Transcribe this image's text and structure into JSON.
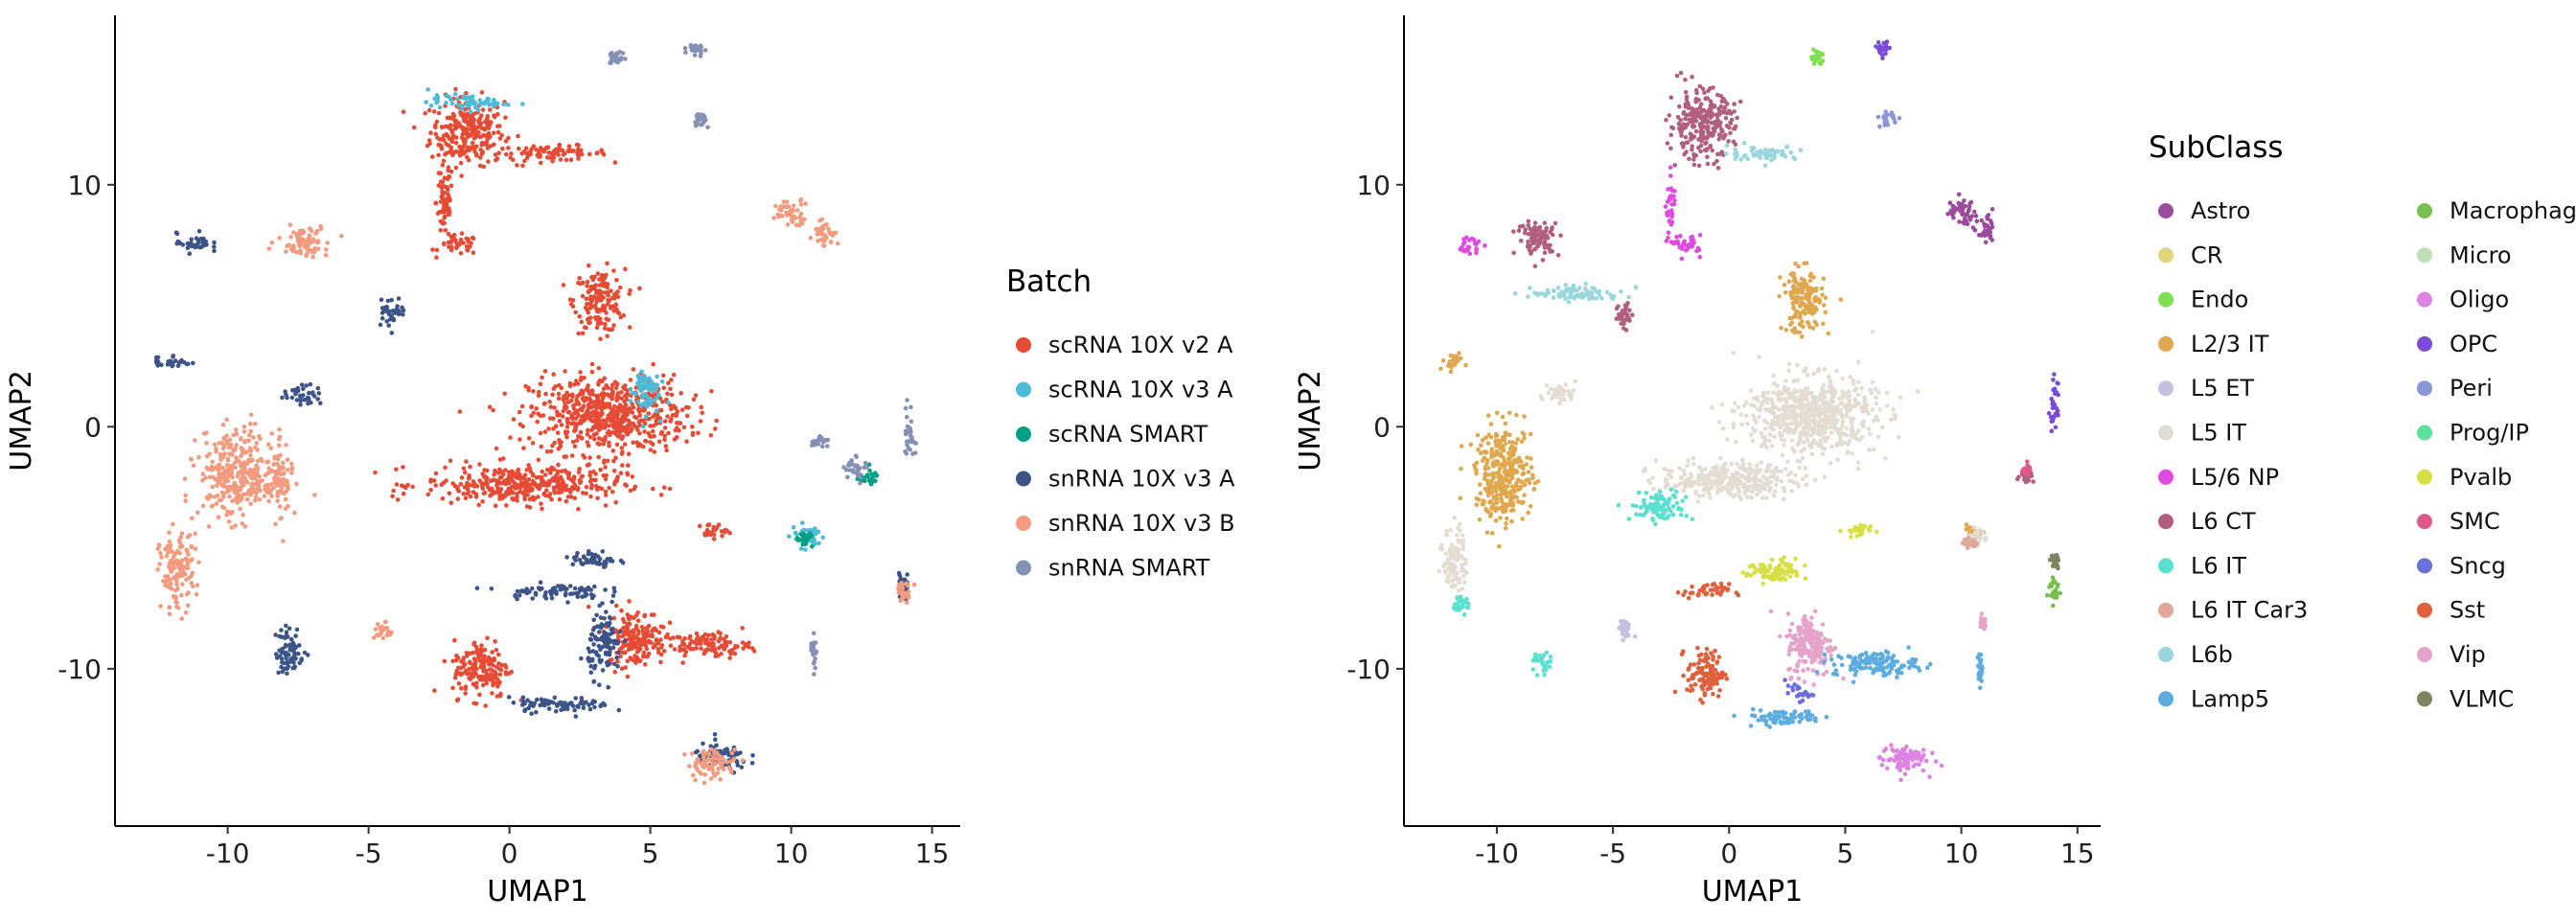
{
  "chart_data": [
    {
      "type": "scatter",
      "title": "",
      "xlabel": "UMAP1",
      "ylabel": "UMAP2",
      "xlim": [
        -14,
        16
      ],
      "ylim": [
        -16.5,
        17
      ],
      "xticks": [
        -10,
        -5,
        0,
        5,
        10,
        15
      ],
      "yticks": [
        -10,
        0,
        10
      ],
      "xtick_labels": [
        "-10",
        "-5",
        "0",
        "5",
        "10",
        "15"
      ],
      "ytick_labels": [
        "-10",
        "0",
        "10"
      ],
      "grid": false,
      "legend": {
        "title": "Batch",
        "placement": "right",
        "columns": 1,
        "entries": [
          {
            "label": "scRNA 10X v2 A",
            "color": "#E64B35"
          },
          {
            "label": "scRNA 10X v3 A",
            "color": "#4DBBD5"
          },
          {
            "label": "scRNA SMART",
            "color": "#00A087"
          },
          {
            "label": "snRNA 10X v3 A",
            "color": "#3C5488"
          },
          {
            "label": "snRNA 10X v3 B",
            "color": "#F39B7F"
          },
          {
            "label": "snRNA SMART",
            "color": "#8491B4"
          }
        ]
      },
      "clusters": [
        {
          "series": "scRNA 10X v2 A",
          "x": -1.5,
          "y": 12.2,
          "w": 1.3,
          "h": 1.4
        },
        {
          "series": "scRNA 10X v2 A",
          "x": 1.5,
          "y": 11.3,
          "w": 2.0,
          "h": 0.3
        },
        {
          "series": "scRNA 10X v2 A",
          "x": -2.3,
          "y": 9.3,
          "w": 0.3,
          "h": 1.6
        },
        {
          "series": "scRNA 10X v2 A",
          "x": -1.8,
          "y": 7.5,
          "w": 0.7,
          "h": 0.4
        },
        {
          "series": "scRNA 10X v2 A",
          "x": 3.2,
          "y": 5.2,
          "w": 0.9,
          "h": 1.3
        },
        {
          "series": "scRNA 10X v2 A",
          "x": 3.5,
          "y": 0.5,
          "w": 2.8,
          "h": 1.6
        },
        {
          "series": "scRNA 10X v2 A",
          "x": 0.5,
          "y": -2.4,
          "w": 3.5,
          "h": 0.8
        },
        {
          "series": "scRNA 10X v2 A",
          "x": -1.0,
          "y": -10.0,
          "w": 1.0,
          "h": 1.2
        },
        {
          "series": "scRNA 10X v2 A",
          "x": 4.5,
          "y": -8.7,
          "w": 1.0,
          "h": 1.2
        },
        {
          "series": "scRNA 10X v2 A",
          "x": 7.0,
          "y": -9.0,
          "w": 1.6,
          "h": 0.5
        },
        {
          "series": "scRNA 10X v2 A",
          "x": 7.2,
          "y": -4.3,
          "w": 0.5,
          "h": 0.3
        },
        {
          "series": "scRNA 10X v3 A",
          "x": -1.5,
          "y": 13.4,
          "w": 1.4,
          "h": 0.3
        },
        {
          "series": "scRNA 10X v3 A",
          "x": 4.8,
          "y": 1.5,
          "w": 0.5,
          "h": 1.0
        },
        {
          "series": "scRNA 10X v3 A",
          "x": 10.6,
          "y": -4.5,
          "w": 0.6,
          "h": 0.5
        },
        {
          "series": "scRNA SMART",
          "x": 12.7,
          "y": -2.1,
          "w": 0.4,
          "h": 0.3
        },
        {
          "series": "scRNA SMART",
          "x": 10.5,
          "y": -4.7,
          "w": 0.3,
          "h": 0.3
        },
        {
          "series": "snRNA 10X v3 A",
          "x": -11.2,
          "y": 7.6,
          "w": 0.6,
          "h": 0.4
        },
        {
          "series": "snRNA 10X v3 A",
          "x": -12.0,
          "y": 2.7,
          "w": 0.7,
          "h": 0.3
        },
        {
          "series": "snRNA 10X v3 A",
          "x": -7.3,
          "y": 1.3,
          "w": 0.7,
          "h": 0.4
        },
        {
          "series": "snRNA 10X v3 A",
          "x": -4.2,
          "y": 4.8,
          "w": 0.5,
          "h": 0.6
        },
        {
          "series": "snRNA 10X v3 A",
          "x": -7.8,
          "y": -9.3,
          "w": 0.5,
          "h": 1.0
        },
        {
          "series": "snRNA 10X v3 A",
          "x": 1.5,
          "y": -6.8,
          "w": 1.8,
          "h": 0.3
        },
        {
          "series": "snRNA 10X v3 A",
          "x": 3.0,
          "y": -5.5,
          "w": 0.8,
          "h": 0.4
        },
        {
          "series": "snRNA 10X v3 A",
          "x": 1.8,
          "y": -11.5,
          "w": 1.8,
          "h": 0.3
        },
        {
          "series": "snRNA 10X v3 A",
          "x": 3.4,
          "y": -9.0,
          "w": 0.6,
          "h": 1.3
        },
        {
          "series": "snRNA 10X v3 A",
          "x": 7.5,
          "y": -13.7,
          "w": 1.0,
          "h": 0.6
        },
        {
          "series": "snRNA 10X v3 A",
          "x": 14.0,
          "y": -6.5,
          "w": 0.2,
          "h": 0.7
        },
        {
          "series": "snRNA 10X v3 B",
          "x": -7.3,
          "y": 7.7,
          "w": 0.9,
          "h": 0.6
        },
        {
          "series": "snRNA 10X v3 B",
          "x": -9.7,
          "y": -2.0,
          "w": 1.3,
          "h": 1.8
        },
        {
          "series": "snRNA 10X v3 B",
          "x": -8.2,
          "y": -2.2,
          "w": 0.5,
          "h": 1.3
        },
        {
          "series": "snRNA 10X v3 B",
          "x": -11.8,
          "y": -6.0,
          "w": 0.6,
          "h": 1.6
        },
        {
          "series": "snRNA 10X v3 B",
          "x": -4.5,
          "y": -8.5,
          "w": 0.3,
          "h": 0.4
        },
        {
          "series": "snRNA 10X v3 B",
          "x": 10.0,
          "y": 8.9,
          "w": 0.7,
          "h": 0.5
        },
        {
          "series": "snRNA 10X v3 B",
          "x": 11.2,
          "y": 8.0,
          "w": 0.4,
          "h": 0.6
        },
        {
          "series": "snRNA 10X v3 B",
          "x": 7.2,
          "y": -13.9,
          "w": 0.9,
          "h": 0.6
        },
        {
          "series": "snRNA 10X v3 B",
          "x": 14.0,
          "y": -6.8,
          "w": 0.3,
          "h": 0.4
        },
        {
          "series": "snRNA SMART",
          "x": 12.3,
          "y": -1.7,
          "w": 0.4,
          "h": 0.5
        },
        {
          "series": "snRNA SMART",
          "x": 14.2,
          "y": -0.2,
          "w": 0.2,
          "h": 1.1
        },
        {
          "series": "snRNA SMART",
          "x": 11.0,
          "y": -0.6,
          "w": 0.3,
          "h": 0.3
        },
        {
          "series": "snRNA SMART",
          "x": 10.8,
          "y": -9.2,
          "w": 0.1,
          "h": 0.7
        },
        {
          "series": "snRNA SMART",
          "x": 3.8,
          "y": 15.2,
          "w": 0.3,
          "h": 0.3
        },
        {
          "series": "snRNA SMART",
          "x": 6.6,
          "y": 15.6,
          "w": 0.3,
          "h": 0.3
        },
        {
          "series": "snRNA SMART",
          "x": 6.8,
          "y": 12.7,
          "w": 0.3,
          "h": 0.3
        }
      ]
    },
    {
      "type": "scatter",
      "title": "",
      "xlabel": "UMAP1",
      "ylabel": "UMAP2",
      "xlim": [
        -14,
        16
      ],
      "ylim": [
        -16.5,
        17
      ],
      "xticks": [
        -10,
        -5,
        0,
        5,
        10,
        15
      ],
      "yticks": [
        -10,
        0,
        10
      ],
      "xtick_labels": [
        "-10",
        "-5",
        "0",
        "5",
        "10",
        "15"
      ],
      "ytick_labels": [
        "-10",
        "0",
        "10"
      ],
      "grid": false,
      "legend": {
        "title": "SubClass",
        "placement": "right",
        "columns": 2,
        "entries": [
          {
            "label": "Astro",
            "color": "#9C4A9C"
          },
          {
            "label": "CR",
            "color": "#E0D77A"
          },
          {
            "label": "Endo",
            "color": "#7CE051"
          },
          {
            "label": "L2/3 IT",
            "color": "#E0A84E"
          },
          {
            "label": "L5 ET",
            "color": "#C4C0E0"
          },
          {
            "label": "L5 IT",
            "color": "#E3DCD3"
          },
          {
            "label": "L5/6 NP",
            "color": "#E04AE0"
          },
          {
            "label": "L6 CT",
            "color": "#B0607E"
          },
          {
            "label": "L6 IT",
            "color": "#5AE0CF"
          },
          {
            "label": "L6 IT Car3",
            "color": "#E0A898"
          },
          {
            "label": "L6b",
            "color": "#9AD7DD"
          },
          {
            "label": "Lamp5",
            "color": "#5DACE0"
          },
          {
            "label": "Macrophage",
            "color": "#76C050"
          },
          {
            "label": "Micro",
            "color": "#BFE0B7"
          },
          {
            "label": "Oligo",
            "color": "#DD84E3"
          },
          {
            "label": "OPC",
            "color": "#7A4BD9"
          },
          {
            "label": "Peri",
            "color": "#8A96D6"
          },
          {
            "label": "Prog/IP",
            "color": "#5EE09A"
          },
          {
            "label": "Pvalb",
            "color": "#D6E044"
          },
          {
            "label": "SMC",
            "color": "#E0588A"
          },
          {
            "label": "Sncg",
            "color": "#6A6FD9"
          },
          {
            "label": "Sst",
            "color": "#E05F3C"
          },
          {
            "label": "Vip",
            "color": "#E5A3CA"
          },
          {
            "label": "VLMC",
            "color": "#7D8560"
          }
        ]
      },
      "clusters": [
        {
          "series": "L6 CT",
          "x": -1.2,
          "y": 12.5,
          "w": 1.4,
          "h": 1.4
        },
        {
          "series": "L6 CT",
          "x": -8.2,
          "y": 7.8,
          "w": 0.9,
          "h": 0.7
        },
        {
          "series": "L6 CT",
          "x": -4.5,
          "y": 4.6,
          "w": 0.4,
          "h": 0.6
        },
        {
          "series": "L6 CT",
          "x": 12.8,
          "y": -2.0,
          "w": 0.3,
          "h": 0.3
        },
        {
          "series": "L6b",
          "x": 1.5,
          "y": 11.3,
          "w": 1.5,
          "h": 0.3
        },
        {
          "series": "L6b",
          "x": -6.5,
          "y": 5.5,
          "w": 2.0,
          "h": 0.3
        },
        {
          "series": "L5/6 NP",
          "x": -2.5,
          "y": 9.0,
          "w": 0.2,
          "h": 1.3
        },
        {
          "series": "L5/6 NP",
          "x": -1.8,
          "y": 7.5,
          "w": 0.6,
          "h": 0.4
        },
        {
          "series": "L5/6 NP",
          "x": -11.2,
          "y": 7.5,
          "w": 0.5,
          "h": 0.4
        },
        {
          "series": "Endo",
          "x": 3.8,
          "y": 15.3,
          "w": 0.3,
          "h": 0.3
        },
        {
          "series": "OPC",
          "x": 6.6,
          "y": 15.6,
          "w": 0.3,
          "h": 0.3
        },
        {
          "series": "OPC",
          "x": 14.0,
          "y": 0.8,
          "w": 0.2,
          "h": 1.1
        },
        {
          "series": "Peri",
          "x": 6.8,
          "y": 12.7,
          "w": 0.3,
          "h": 0.3
        },
        {
          "series": "Astro",
          "x": 10.0,
          "y": 8.9,
          "w": 0.7,
          "h": 0.5
        },
        {
          "series": "Astro",
          "x": 11.1,
          "y": 8.0,
          "w": 0.4,
          "h": 0.6
        },
        {
          "series": "L2/3 IT",
          "x": 3.2,
          "y": 5.2,
          "w": 0.9,
          "h": 1.3
        },
        {
          "series": "L2/3 IT",
          "x": -9.7,
          "y": -2.0,
          "w": 1.2,
          "h": 2.0
        },
        {
          "series": "L2/3 IT",
          "x": -12.0,
          "y": 2.7,
          "w": 0.6,
          "h": 0.3
        },
        {
          "series": "L2/3 IT",
          "x": 10.5,
          "y": -4.4,
          "w": 0.5,
          "h": 0.3
        },
        {
          "series": "L5 IT",
          "x": 3.5,
          "y": 0.5,
          "w": 2.8,
          "h": 1.6
        },
        {
          "series": "L5 IT",
          "x": 0.0,
          "y": -2.2,
          "w": 3.0,
          "h": 0.7
        },
        {
          "series": "L5 IT",
          "x": -7.3,
          "y": 1.4,
          "w": 0.7,
          "h": 0.4
        },
        {
          "series": "L5 IT",
          "x": -11.8,
          "y": -5.5,
          "w": 0.5,
          "h": 1.4
        },
        {
          "series": "L5 IT",
          "x": 10.7,
          "y": -4.6,
          "w": 0.4,
          "h": 0.4
        },
        {
          "series": "L6 IT",
          "x": -3.0,
          "y": -3.3,
          "w": 1.2,
          "h": 0.6
        },
        {
          "series": "L6 IT",
          "x": -11.5,
          "y": -7.3,
          "w": 0.4,
          "h": 0.4
        },
        {
          "series": "L6 IT",
          "x": -8.0,
          "y": -9.8,
          "w": 0.4,
          "h": 0.5
        },
        {
          "series": "L5 ET",
          "x": -4.5,
          "y": -8.4,
          "w": 0.3,
          "h": 0.4
        },
        {
          "series": "Pvalb",
          "x": 2.0,
          "y": -6.0,
          "w": 1.2,
          "h": 0.5
        },
        {
          "series": "Pvalb",
          "x": 5.5,
          "y": -4.3,
          "w": 0.6,
          "h": 0.3
        },
        {
          "series": "Sst",
          "x": -1.0,
          "y": -6.8,
          "w": 1.0,
          "h": 0.3
        },
        {
          "series": "Sst",
          "x": -1.0,
          "y": -10.2,
          "w": 0.8,
          "h": 1.0
        },
        {
          "series": "Vip",
          "x": 3.5,
          "y": -9.0,
          "w": 1.0,
          "h": 1.3
        },
        {
          "series": "Vip",
          "x": 10.9,
          "y": -8.1,
          "w": 0.1,
          "h": 0.3
        },
        {
          "series": "Lamp5",
          "x": 2.3,
          "y": -12.0,
          "w": 1.8,
          "h": 0.3
        },
        {
          "series": "Lamp5",
          "x": 6.3,
          "y": -9.8,
          "w": 1.8,
          "h": 0.5
        },
        {
          "series": "Lamp5",
          "x": 10.8,
          "y": -10.0,
          "w": 0.1,
          "h": 0.7
        },
        {
          "series": "Sncg",
          "x": 3.0,
          "y": -11.0,
          "w": 0.6,
          "h": 0.3
        },
        {
          "series": "Oligo",
          "x": 7.5,
          "y": -13.7,
          "w": 1.0,
          "h": 0.6
        },
        {
          "series": "Macrophage",
          "x": 14.0,
          "y": -6.7,
          "w": 0.3,
          "h": 0.6
        },
        {
          "series": "L6 IT Car3",
          "x": 10.4,
          "y": -4.8,
          "w": 0.3,
          "h": 0.2
        },
        {
          "series": "SMC",
          "x": 12.8,
          "y": -1.8,
          "w": 0.2,
          "h": 0.2
        },
        {
          "series": "VLMC",
          "x": 14.0,
          "y": -5.6,
          "w": 0.2,
          "h": 0.3
        }
      ]
    }
  ]
}
